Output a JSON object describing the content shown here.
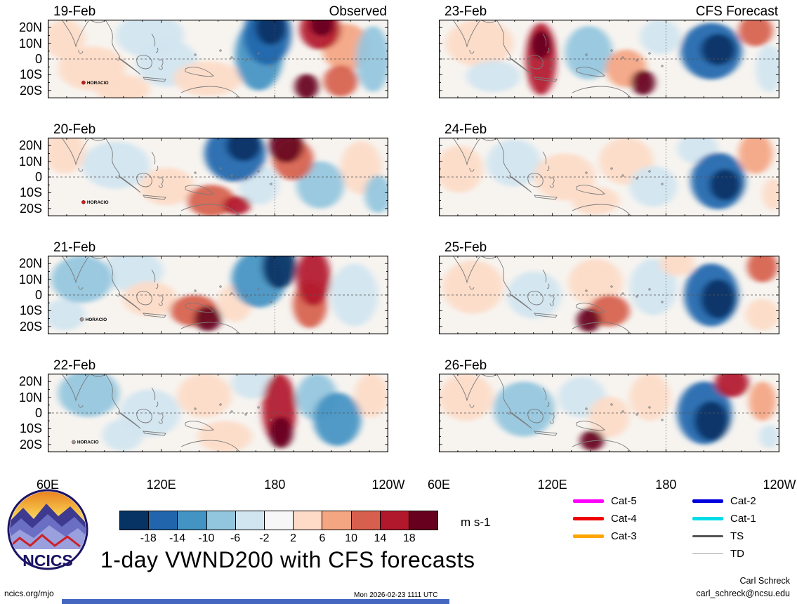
{
  "page": {
    "logo_text": "NCICS",
    "footer_left": "ncics.org/mjo",
    "footer_center": "Mon 2026-02-23 1111 UTC",
    "credit_name": "Carl Schreck",
    "credit_email": "carl_schreck@ncsu.edu"
  },
  "chart_data": {
    "type": "heatmap",
    "subtype": "filled-contour longitude-latitude anomaly maps, 8 daily panels",
    "title": "1-day VWND200 with CFS forecasts",
    "column_titles": [
      "Observed",
      "CFS Forecast"
    ],
    "x_tick_labels": [
      "60E",
      "120E",
      "180",
      "120W"
    ],
    "y_tick_labels": [
      "20N",
      "10N",
      "0",
      "10S",
      "20S"
    ],
    "colorbar": {
      "units": "m s-1",
      "tick_labels": [
        "-18",
        "-14",
        "-10",
        "-6",
        "-2",
        "2",
        "6",
        "10",
        "14",
        "18"
      ],
      "colors": [
        "#063264",
        "#2166ac",
        "#4393c3",
        "#92c5de",
        "#d1e5f0",
        "#f7f7f7",
        "#fddbc7",
        "#f4a582",
        "#d6604d",
        "#b2182b",
        "#67001f"
      ]
    },
    "storm_legend": {
      "col1": [
        {
          "label": "Cat-5",
          "color": "#ff00ff",
          "weight": 5
        },
        {
          "label": "Cat-4",
          "color": "#ee0000",
          "weight": 5
        },
        {
          "label": "Cat-3",
          "color": "#ffa500",
          "weight": 5
        }
      ],
      "col2": [
        {
          "label": "Cat-2",
          "color": "#0000dd",
          "weight": 5
        },
        {
          "label": "Cat-1",
          "color": "#00dde8",
          "weight": 5
        },
        {
          "label": "TS",
          "color": "#555555",
          "weight": 3
        },
        {
          "label": "TD",
          "color": "#aaaaaa",
          "weight": 1.5
        }
      ]
    },
    "anomaly_format": "[x_frac, y_frac, rx_frac, ry_frac, color_index 0..10 into colorbar.colors]",
    "panels": [
      {
        "date": "19-Feb",
        "column": "Observed",
        "storms": [
          {
            "name": "HORACIO",
            "x": 0.105,
            "y": 0.8,
            "color": "#c42222"
          }
        ],
        "anomalies": [
          [
            0.3,
            0.2,
            0.1,
            0.28,
            4
          ],
          [
            0.35,
            0.55,
            0.09,
            0.3,
            4
          ],
          [
            0.13,
            0.62,
            0.1,
            0.28,
            6
          ],
          [
            0.47,
            0.75,
            0.1,
            0.22,
            6
          ],
          [
            0.22,
            0.88,
            0.08,
            0.18,
            6
          ],
          [
            0.05,
            0.25,
            0.06,
            0.25,
            6
          ],
          [
            0.62,
            0.45,
            0.07,
            0.45,
            2
          ],
          [
            0.645,
            0.18,
            0.07,
            0.4,
            1
          ],
          [
            0.655,
            0.1,
            0.045,
            0.22,
            0
          ],
          [
            0.8,
            0.12,
            0.06,
            0.26,
            9
          ],
          [
            0.805,
            0.07,
            0.035,
            0.14,
            10
          ],
          [
            0.875,
            0.35,
            0.07,
            0.3,
            7
          ],
          [
            0.76,
            0.85,
            0.035,
            0.16,
            10
          ],
          [
            0.86,
            0.78,
            0.05,
            0.2,
            8
          ],
          [
            0.955,
            0.5,
            0.05,
            0.42,
            3
          ]
        ]
      },
      {
        "date": "20-Feb",
        "column": "Observed",
        "storms": [
          {
            "name": "HORACIO",
            "x": 0.105,
            "y": 0.82,
            "color": "#c42222"
          }
        ],
        "anomalies": [
          [
            0.2,
            0.35,
            0.1,
            0.3,
            4
          ],
          [
            0.55,
            0.2,
            0.09,
            0.36,
            1
          ],
          [
            0.575,
            0.1,
            0.05,
            0.2,
            0
          ],
          [
            0.7,
            0.1,
            0.05,
            0.22,
            10
          ],
          [
            0.72,
            0.28,
            0.06,
            0.26,
            8
          ],
          [
            0.05,
            0.18,
            0.06,
            0.28,
            6
          ],
          [
            0.35,
            0.62,
            0.08,
            0.24,
            6
          ],
          [
            0.48,
            0.8,
            0.07,
            0.2,
            8
          ],
          [
            0.555,
            0.86,
            0.04,
            0.12,
            9
          ],
          [
            0.8,
            0.6,
            0.07,
            0.3,
            3
          ],
          [
            0.92,
            0.38,
            0.06,
            0.34,
            6
          ],
          [
            0.97,
            0.72,
            0.04,
            0.24,
            3
          ],
          [
            0.62,
            0.6,
            0.06,
            0.25,
            4
          ]
        ]
      },
      {
        "date": "21-Feb",
        "column": "Observed",
        "storms": [
          {
            "name": "HORACIO",
            "x": 0.1,
            "y": 0.81,
            "color": "#999999"
          }
        ],
        "anomalies": [
          [
            0.1,
            0.3,
            0.09,
            0.3,
            3
          ],
          [
            0.25,
            0.2,
            0.09,
            0.26,
            4
          ],
          [
            0.3,
            0.55,
            0.08,
            0.22,
            6
          ],
          [
            0.62,
            0.3,
            0.08,
            0.36,
            2
          ],
          [
            0.68,
            0.14,
            0.05,
            0.28,
            0
          ],
          [
            0.78,
            0.28,
            0.05,
            0.36,
            9
          ],
          [
            0.77,
            0.62,
            0.05,
            0.3,
            8
          ],
          [
            0.47,
            0.8,
            0.04,
            0.16,
            10
          ],
          [
            0.43,
            0.7,
            0.07,
            0.2,
            8
          ],
          [
            0.9,
            0.5,
            0.07,
            0.4,
            4
          ],
          [
            0.55,
            0.6,
            0.05,
            0.24,
            6
          ],
          [
            0.05,
            0.75,
            0.06,
            0.2,
            4
          ]
        ]
      },
      {
        "date": "22-Feb",
        "column": "Observed",
        "storms": [
          {
            "name": "HORACIO",
            "x": 0.076,
            "y": 0.87,
            "color": "#999999"
          }
        ],
        "anomalies": [
          [
            0.12,
            0.25,
            0.09,
            0.3,
            3
          ],
          [
            0.3,
            0.5,
            0.09,
            0.3,
            4
          ],
          [
            0.46,
            0.28,
            0.08,
            0.28,
            6
          ],
          [
            0.68,
            0.45,
            0.05,
            0.45,
            9
          ],
          [
            0.685,
            0.75,
            0.035,
            0.2,
            10
          ],
          [
            0.79,
            0.3,
            0.06,
            0.3,
            3
          ],
          [
            0.85,
            0.58,
            0.07,
            0.34,
            2
          ],
          [
            0.95,
            0.28,
            0.05,
            0.28,
            6
          ],
          [
            0.52,
            0.8,
            0.08,
            0.2,
            6
          ],
          [
            0.22,
            0.78,
            0.06,
            0.2,
            4
          ],
          [
            0.6,
            0.12,
            0.06,
            0.2,
            4
          ]
        ]
      },
      {
        "date": "23-Feb",
        "column": "CFS Forecast",
        "storms": [],
        "anomalies": [
          [
            0.12,
            0.3,
            0.1,
            0.3,
            6
          ],
          [
            0.3,
            0.5,
            0.045,
            0.46,
            9
          ],
          [
            0.3,
            0.32,
            0.03,
            0.18,
            10
          ],
          [
            0.44,
            0.42,
            0.07,
            0.34,
            3
          ],
          [
            0.65,
            0.22,
            0.06,
            0.22,
            4
          ],
          [
            0.8,
            0.4,
            0.09,
            0.36,
            1
          ],
          [
            0.82,
            0.38,
            0.05,
            0.2,
            0
          ],
          [
            0.93,
            0.14,
            0.05,
            0.2,
            8
          ],
          [
            0.6,
            0.8,
            0.035,
            0.16,
            10
          ],
          [
            0.55,
            0.62,
            0.06,
            0.24,
            7
          ],
          [
            0.16,
            0.72,
            0.08,
            0.2,
            4
          ],
          [
            0.97,
            0.62,
            0.04,
            0.3,
            4
          ]
        ]
      },
      {
        "date": "24-Feb",
        "column": "CFS Forecast",
        "storms": [],
        "anomalies": [
          [
            0.06,
            0.4,
            0.07,
            0.3,
            6
          ],
          [
            0.22,
            0.32,
            0.08,
            0.3,
            4
          ],
          [
            0.37,
            0.5,
            0.09,
            0.3,
            6
          ],
          [
            0.55,
            0.3,
            0.08,
            0.3,
            6
          ],
          [
            0.63,
            0.62,
            0.07,
            0.26,
            4
          ],
          [
            0.82,
            0.55,
            0.08,
            0.36,
            1
          ],
          [
            0.84,
            0.6,
            0.045,
            0.2,
            0
          ],
          [
            0.93,
            0.2,
            0.05,
            0.26,
            7
          ],
          [
            0.76,
            0.14,
            0.06,
            0.2,
            4
          ],
          [
            0.46,
            0.8,
            0.07,
            0.18,
            6
          ],
          [
            0.98,
            0.72,
            0.03,
            0.2,
            6
          ]
        ]
      },
      {
        "date": "25-Feb",
        "column": "CFS Forecast",
        "storms": [],
        "anomalies": [
          [
            0.1,
            0.4,
            0.09,
            0.34,
            6
          ],
          [
            0.28,
            0.5,
            0.08,
            0.3,
            4
          ],
          [
            0.46,
            0.34,
            0.08,
            0.3,
            6
          ],
          [
            0.44,
            0.82,
            0.035,
            0.15,
            10
          ],
          [
            0.5,
            0.7,
            0.06,
            0.2,
            8
          ],
          [
            0.63,
            0.4,
            0.07,
            0.36,
            4
          ],
          [
            0.8,
            0.5,
            0.08,
            0.4,
            1
          ],
          [
            0.82,
            0.55,
            0.05,
            0.25,
            0
          ],
          [
            0.95,
            0.14,
            0.045,
            0.2,
            8
          ],
          [
            0.95,
            0.75,
            0.05,
            0.2,
            6
          ],
          [
            0.7,
            0.1,
            0.05,
            0.16,
            6
          ]
        ]
      },
      {
        "date": "26-Feb",
        "column": "CFS Forecast",
        "storms": [],
        "anomalies": [
          [
            0.08,
            0.3,
            0.08,
            0.3,
            6
          ],
          [
            0.25,
            0.45,
            0.09,
            0.35,
            3
          ],
          [
            0.42,
            0.3,
            0.07,
            0.26,
            4
          ],
          [
            0.5,
            0.55,
            0.06,
            0.26,
            6
          ],
          [
            0.45,
            0.85,
            0.035,
            0.13,
            10
          ],
          [
            0.62,
            0.3,
            0.06,
            0.3,
            6
          ],
          [
            0.78,
            0.5,
            0.08,
            0.4,
            1
          ],
          [
            0.8,
            0.6,
            0.05,
            0.25,
            0
          ],
          [
            0.86,
            0.12,
            0.05,
            0.18,
            9
          ],
          [
            0.95,
            0.35,
            0.04,
            0.25,
            7
          ],
          [
            0.97,
            0.8,
            0.03,
            0.15,
            4
          ]
        ]
      }
    ]
  }
}
